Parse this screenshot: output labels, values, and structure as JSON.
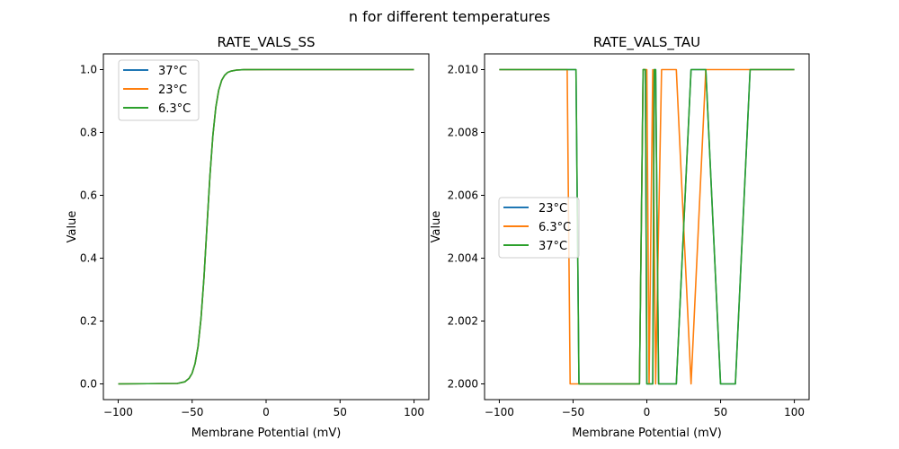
{
  "chart_data": [
    {
      "type": "line",
      "title": "RATE_VALS_SS",
      "xlabel": "Membrane Potential (mV)",
      "ylabel": "Value",
      "xlim": [
        -110,
        110
      ],
      "ylim": [
        -0.05,
        1.05
      ],
      "xticks": [
        -100,
        -50,
        0,
        50,
        100
      ],
      "yticks": [
        0.0,
        0.2,
        0.4,
        0.6,
        0.8,
        1.0
      ],
      "ytick_labels": [
        "0.0",
        "0.2",
        "0.4",
        "0.6",
        "0.8",
        "1.0"
      ],
      "legend_position": "upper-left",
      "series": [
        {
          "name": "37°C",
          "color": "#1f77b4",
          "x": [
            -100,
            -60,
            -55,
            -52,
            -50,
            -48,
            -46,
            -44,
            -42,
            -40,
            -38,
            -36,
            -34,
            -32,
            -30,
            -28,
            -26,
            -24,
            -20,
            -15,
            0,
            100
          ],
          "y": [
            0,
            0.0013,
            0.0067,
            0.018,
            0.034,
            0.065,
            0.119,
            0.209,
            0.339,
            0.5,
            0.661,
            0.791,
            0.881,
            0.935,
            0.966,
            0.982,
            0.991,
            0.995,
            0.9987,
            0.9998,
            1,
            1
          ]
        },
        {
          "name": "23°C",
          "color": "#ff7f0e",
          "x": [
            -100,
            -60,
            -55,
            -52,
            -50,
            -48,
            -46,
            -44,
            -42,
            -40,
            -38,
            -36,
            -34,
            -32,
            -30,
            -28,
            -26,
            -24,
            -20,
            -15,
            0,
            100
          ],
          "y": [
            0,
            0.0013,
            0.0067,
            0.018,
            0.034,
            0.065,
            0.119,
            0.209,
            0.339,
            0.5,
            0.661,
            0.791,
            0.881,
            0.935,
            0.966,
            0.982,
            0.991,
            0.995,
            0.9987,
            0.9998,
            1,
            1
          ]
        },
        {
          "name": "6.3°C",
          "color": "#2ca02c",
          "x": [
            -100,
            -60,
            -55,
            -52,
            -50,
            -48,
            -46,
            -44,
            -42,
            -40,
            -38,
            -36,
            -34,
            -32,
            -30,
            -28,
            -26,
            -24,
            -20,
            -15,
            0,
            100
          ],
          "y": [
            0,
            0.0013,
            0.0067,
            0.018,
            0.034,
            0.065,
            0.119,
            0.209,
            0.339,
            0.5,
            0.661,
            0.791,
            0.881,
            0.935,
            0.966,
            0.982,
            0.991,
            0.995,
            0.9987,
            0.9998,
            1,
            1
          ]
        }
      ]
    },
    {
      "type": "line",
      "title": "RATE_VALS_TAU",
      "xlabel": "Membrane Potential (mV)",
      "ylabel": "Value",
      "xlim": [
        -110,
        110
      ],
      "ylim": [
        1.9995,
        2.0105
      ],
      "xticks": [
        -100,
        -50,
        0,
        50,
        100
      ],
      "yticks": [
        2.0,
        2.002,
        2.004,
        2.006,
        2.008,
        2.01
      ],
      "ytick_labels": [
        "2.000",
        "2.002",
        "2.004",
        "2.006",
        "2.008",
        "2.010"
      ],
      "legend_position": "center-left",
      "series": [
        {
          "name": "23°C",
          "color": "#1f77b4",
          "x": [
            -100,
            -48,
            -46,
            -5,
            -2.5,
            -1,
            0,
            4,
            5,
            6,
            8,
            20,
            30,
            40,
            50,
            60,
            70,
            100
          ],
          "y": [
            2.01,
            2.01,
            2.0,
            2.0,
            2.01,
            2.01,
            2.0,
            2.0,
            2.01,
            2.01,
            2.0,
            2.0,
            2.01,
            2.01,
            2.0,
            2.0,
            2.01,
            2.01
          ]
        },
        {
          "name": "6.3°C",
          "color": "#ff7f0e",
          "x": [
            -100,
            -54,
            -52,
            -5,
            -2.5,
            0,
            1.5,
            4,
            6,
            10,
            20,
            30,
            40,
            100
          ],
          "y": [
            2.01,
            2.01,
            2.0,
            2.0,
            2.01,
            2.01,
            2.0,
            2.01,
            2.0,
            2.01,
            2.01,
            2.0,
            2.01,
            2.01
          ]
        },
        {
          "name": "37°C",
          "color": "#2ca02c",
          "x": [
            -100,
            -48,
            -46,
            -5,
            -2.5,
            -1,
            0,
            4,
            5,
            6,
            8,
            20,
            30,
            40,
            50,
            60,
            70,
            100
          ],
          "y": [
            2.01,
            2.01,
            2.0,
            2.0,
            2.01,
            2.01,
            2.0,
            2.0,
            2.01,
            2.01,
            2.0,
            2.0,
            2.01,
            2.01,
            2.0,
            2.0,
            2.01,
            2.01
          ]
        }
      ]
    }
  ],
  "suptitle": "n for different temperatures"
}
